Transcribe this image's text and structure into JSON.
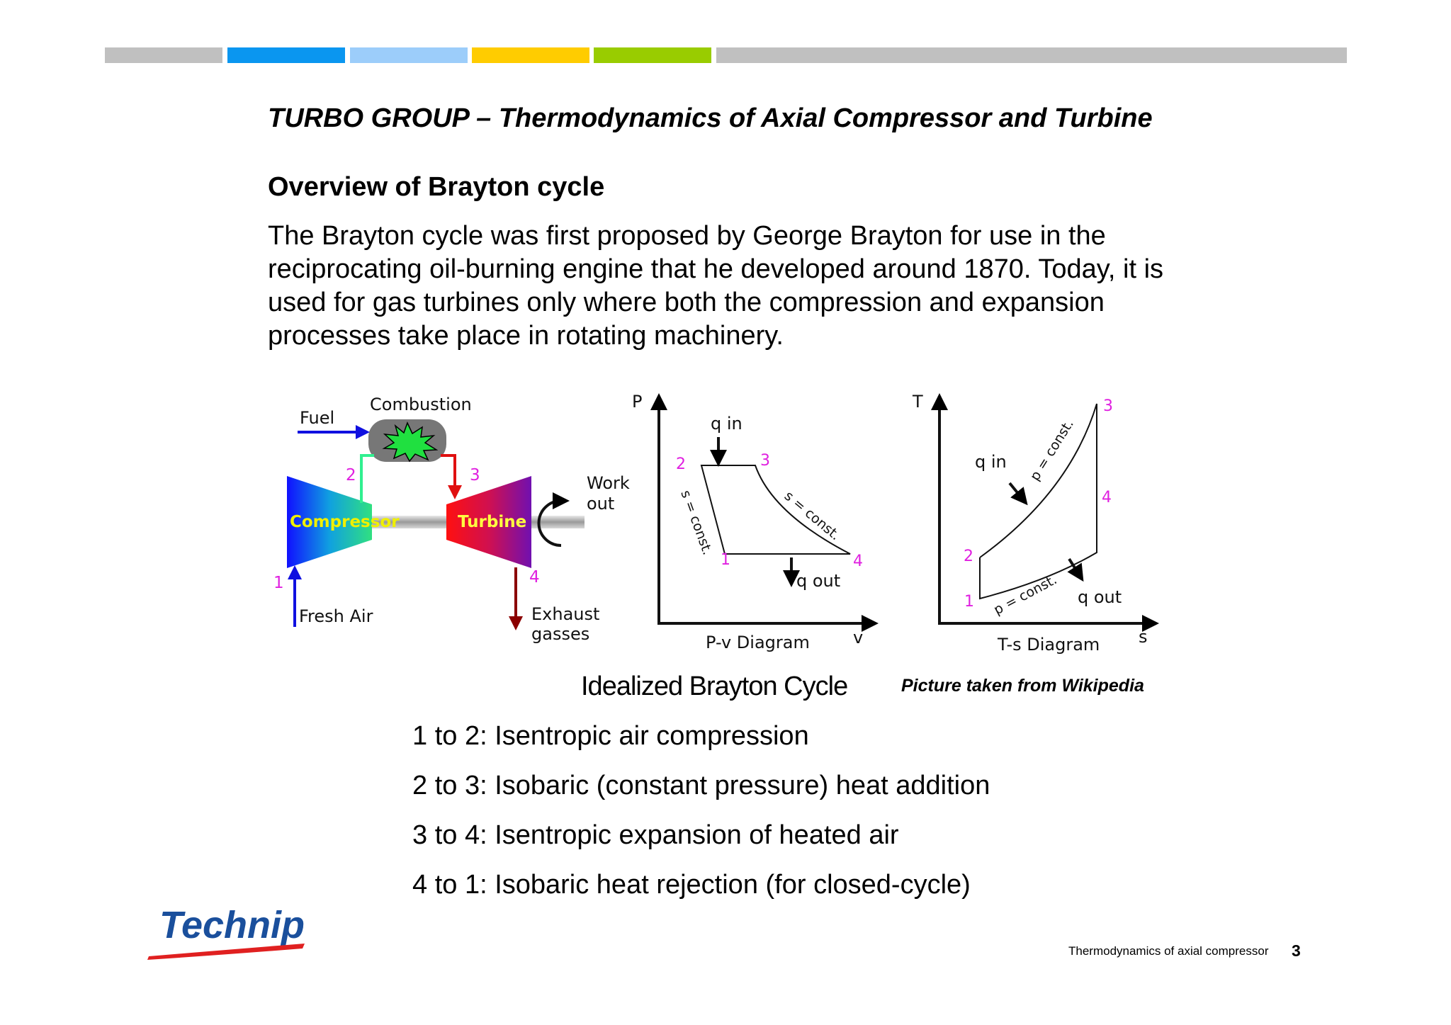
{
  "colors": {
    "stripes": [
      "#c0c0c0",
      "#0a96f0",
      "#9ccdfa",
      "#ffcc00",
      "#99cc00",
      "#c0c0c0"
    ],
    "label_magenta": "#e020e0",
    "logo_blue": "#1a4f9c",
    "logo_red": "#e02020"
  },
  "header": {
    "title": "TURBO GROUP – Thermodynamics of Axial Compressor and Turbine"
  },
  "section": {
    "heading": "Overview of Brayton cycle",
    "body": "The Brayton cycle was first proposed by George Brayton for use in the reciprocating oil-burning engine that he developed around 1870. Today, it is used for gas turbines only where both the compression and expansion processes take place in rotating machinery."
  },
  "figure": {
    "engine": {
      "fuel": "Fuel",
      "combustion": "Combustion",
      "compressor": "Compressor",
      "turbine": "Turbine",
      "work_out_1": "Work",
      "work_out_2": "out",
      "fresh_air": "Fresh Air",
      "exhaust_1": "Exhaust",
      "exhaust_2": "gasses",
      "n1": "1",
      "n2": "2",
      "n3": "3",
      "n4": "4"
    },
    "pv": {
      "axis_y": "P",
      "axis_x": "v",
      "title": "P-v Diagram",
      "q_in": "q in",
      "q_out": "q out",
      "s_const_left": "s = const.",
      "s_const_right": "s = const.",
      "n1": "1",
      "n2": "2",
      "n3": "3",
      "n4": "4"
    },
    "ts": {
      "axis_y": "T",
      "axis_x": "s",
      "title": "T-s Diagram",
      "q_in": "q in",
      "q_out": "q out",
      "p_const_upper": "p = const.",
      "p_const_lower": "p = const.",
      "n1": "1",
      "n2": "2",
      "n3": "3",
      "n4": "4"
    },
    "caption": "Idealized Brayton Cycle",
    "credit": "Picture taken from Wikipedia"
  },
  "steps": [
    "1 to 2: Isentropic air compression",
    "2 to 3: Isobaric (constant pressure) heat addition",
    "3 to 4: Isentropic expansion of heated air",
    "4 to 1: Isobaric heat rejection (for closed-cycle)"
  ],
  "footer": {
    "logo": "Technip",
    "label": "Thermodynamics of  axial compressor",
    "page": "3"
  }
}
